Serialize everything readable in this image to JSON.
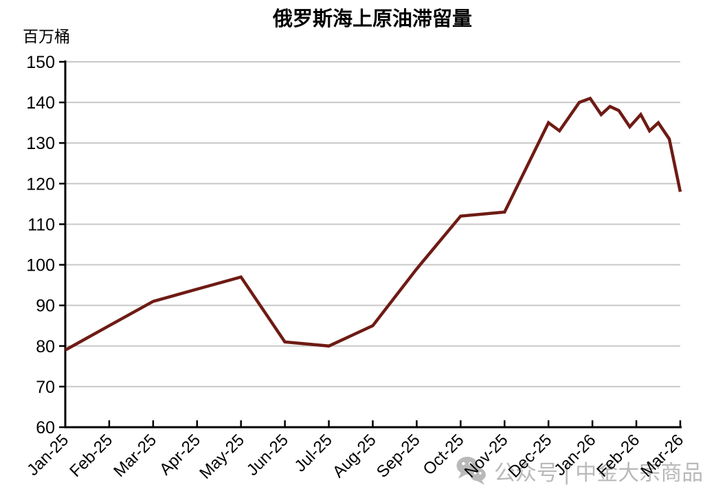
{
  "page": {
    "background": "#ffffff"
  },
  "chart_data": {
    "type": "line",
    "title": "俄罗斯海上原油滞留量",
    "unit_label": "百万桶",
    "xlabel": "",
    "ylabel": "百万桶",
    "ylim": [
      60,
      150
    ],
    "yticks": [
      60,
      70,
      80,
      90,
      100,
      110,
      120,
      130,
      140,
      150
    ],
    "x_categories": [
      "Jan-25",
      "Feb-25",
      "Mar-25",
      "Apr-25",
      "May-25",
      "Jun-25",
      "Jul-25",
      "Aug-25",
      "Sep-25",
      "Oct-25",
      "Nov-25",
      "Dec-25",
      "Jan-26",
      "Feb-26",
      "Mar-26"
    ],
    "grid": "horizontal",
    "legend": "none",
    "line_color": "#6e1b14",
    "grid_color": "#c8c8c8",
    "axis_color": "#000000",
    "series": [
      {
        "name": "俄罗斯海上原油滞留量",
        "points": [
          [
            0,
            79
          ],
          [
            1,
            85
          ],
          [
            2,
            91
          ],
          [
            3,
            94
          ],
          [
            4,
            97
          ],
          [
            5,
            81
          ],
          [
            6,
            80
          ],
          [
            7,
            85
          ],
          [
            8,
            99
          ],
          [
            9,
            112
          ],
          [
            10,
            113
          ],
          [
            11,
            135
          ],
          [
            11.25,
            133
          ],
          [
            11.7,
            140
          ],
          [
            11.95,
            141
          ],
          [
            12.2,
            137
          ],
          [
            12.4,
            139
          ],
          [
            12.6,
            138
          ],
          [
            12.85,
            134
          ],
          [
            13.1,
            137
          ],
          [
            13.3,
            133
          ],
          [
            13.5,
            135
          ],
          [
            13.75,
            131
          ],
          [
            14,
            118
          ]
        ]
      }
    ]
  },
  "watermark": {
    "icon": "wechat-icon",
    "text": "公众号 | 中金大宗商品",
    "color": "#b9b9b9"
  }
}
